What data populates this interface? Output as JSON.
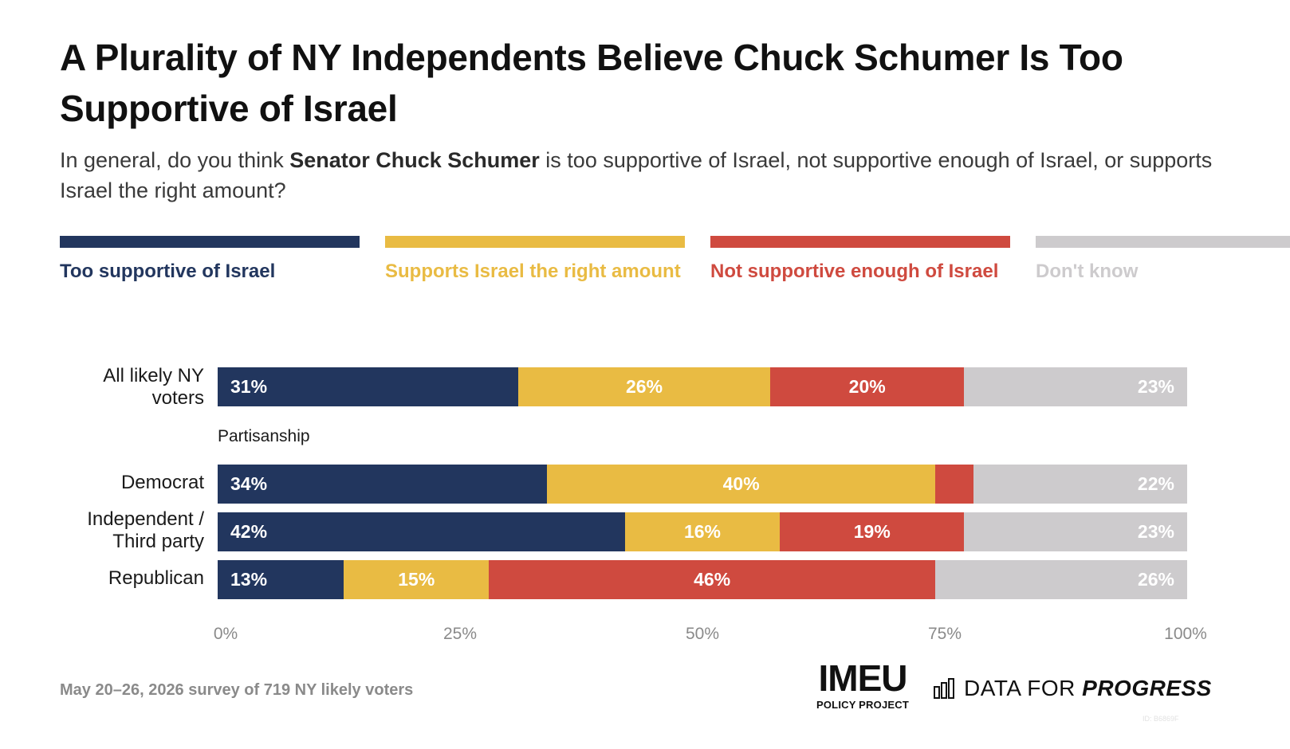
{
  "title": "A Plurality of NY Independents Believe Chuck Schumer Is Too Supportive of Israel",
  "subtitle": {
    "before": "In general, do you think ",
    "bold": "Senator Chuck Schumer",
    "after": " is too supportive of Israel, not supportive enough of Israel, or supports Israel the right amount?"
  },
  "footnote": "May 20–26, 2026 survey of 719 NY likely voters",
  "logos": {
    "imeu_main": "IMEU",
    "imeu_sub": "POLICY PROJECT",
    "dfp_prefix": "DATA FOR ",
    "dfp_bold": "PROGRESS",
    "dfp_icon": "bar-chart-icon"
  },
  "chart_id": "ID: B6869F",
  "chart_data": {
    "type": "bar",
    "orientation": "horizontal-stacked-100",
    "legend_position": "top",
    "grid": false,
    "xlim": [
      0,
      100
    ],
    "x_ticks": [
      "0%",
      "25%",
      "50%",
      "75%",
      "100%"
    ],
    "series": [
      {
        "name": "Too supportive of Israel",
        "color": "#22365e"
      },
      {
        "name": "Supports Israel the right amount",
        "color": "#e9bb43"
      },
      {
        "name": "Not supportive enough of Israel",
        "color": "#cf4a3f"
      },
      {
        "name": "Don't know",
        "color": "#cdcbcd"
      }
    ],
    "group_label": "Partisanship",
    "rows": [
      {
        "label": "All likely NY voters",
        "values": [
          31,
          26,
          20,
          23
        ],
        "labels": [
          "31%",
          "26%",
          "20%",
          "23%"
        ]
      },
      {
        "label": "Democrat",
        "values": [
          34,
          40,
          4,
          22
        ],
        "labels": [
          "34%",
          "40%",
          "",
          "22%"
        ]
      },
      {
        "label": "Independent / Third party",
        "values": [
          42,
          16,
          19,
          23
        ],
        "labels": [
          "42%",
          "16%",
          "19%",
          "23%"
        ]
      },
      {
        "label": "Republican",
        "values": [
          13,
          15,
          46,
          26
        ],
        "labels": [
          "13%",
          "15%",
          "46%",
          "26%"
        ]
      }
    ]
  }
}
